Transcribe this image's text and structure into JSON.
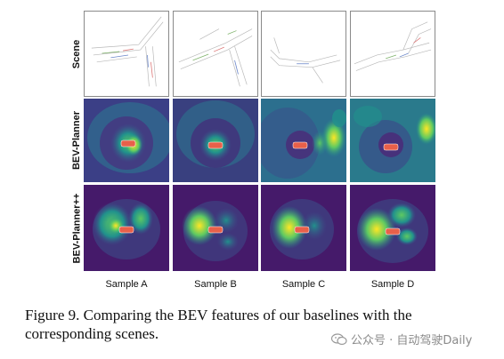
{
  "figure": {
    "rows": [
      "Scene",
      "BEV-Planner",
      "BEV-Planner++"
    ],
    "samples": [
      "Sample A",
      "Sample B",
      "Sample C",
      "Sample D"
    ],
    "colormap": [
      "#440154",
      "#3b528b",
      "#21918c",
      "#5ec962",
      "#fde725"
    ],
    "ego_vehicle_color": "#e8604a"
  },
  "caption": {
    "line1": "Figure 9.  Comparing the BEV features of our baselines with the",
    "line2": "corresponding scenes."
  },
  "watermark": {
    "text": "公众号 · 自动驾驶Daily",
    "icon": "wechat-icon"
  }
}
